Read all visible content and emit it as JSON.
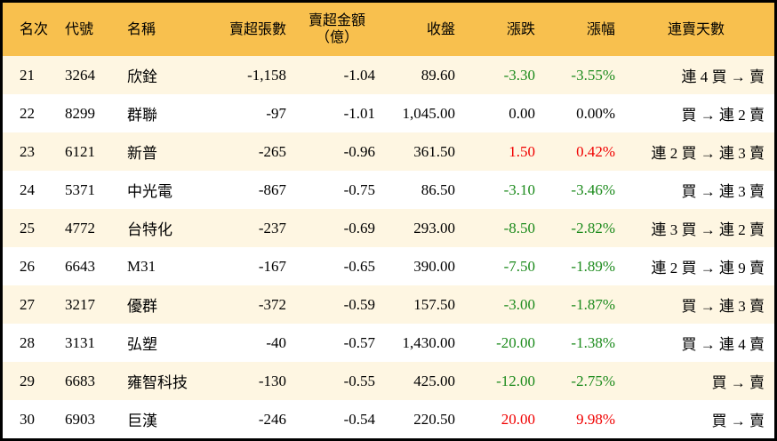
{
  "colors": {
    "header_bg": "#F8C04E",
    "alt_row_bg": "#FEF6E2",
    "down": "#1B8A1B",
    "up": "#F00000"
  },
  "headers": [
    "名次",
    "代號",
    "名稱",
    "賣超張數",
    "賣超金額",
    "（億）",
    "收盤",
    "漲跌",
    "漲幅",
    "連賣天數"
  ],
  "rows": [
    {
      "rank": "21",
      "code": "3264",
      "name": "欣銓",
      "shares": "-1,158",
      "amount": "-1.04",
      "close": "89.60",
      "change": "-3.30",
      "pct": "-3.55%",
      "dir": "down",
      "streak": "連 4 買 → 賣"
    },
    {
      "rank": "22",
      "code": "8299",
      "name": "群聯",
      "shares": "-97",
      "amount": "-1.01",
      "close": "1,045.00",
      "change": "0.00",
      "pct": "0.00%",
      "dir": "flat",
      "streak": "買 → 連 2 賣"
    },
    {
      "rank": "23",
      "code": "6121",
      "name": "新普",
      "shares": "-265",
      "amount": "-0.96",
      "close": "361.50",
      "change": "1.50",
      "pct": "0.42%",
      "dir": "up",
      "streak": "連 2 買 → 連 3 賣"
    },
    {
      "rank": "24",
      "code": "5371",
      "name": "中光電",
      "shares": "-867",
      "amount": "-0.75",
      "close": "86.50",
      "change": "-3.10",
      "pct": "-3.46%",
      "dir": "down",
      "streak": "買 → 連 3 賣"
    },
    {
      "rank": "25",
      "code": "4772",
      "name": "台特化",
      "shares": "-237",
      "amount": "-0.69",
      "close": "293.00",
      "change": "-8.50",
      "pct": "-2.82%",
      "dir": "down",
      "streak": "連 3 買 → 連 2 賣"
    },
    {
      "rank": "26",
      "code": "6643",
      "name": "M31",
      "shares": "-167",
      "amount": "-0.65",
      "close": "390.00",
      "change": "-7.50",
      "pct": "-1.89%",
      "dir": "down",
      "streak": "連 2 買 → 連 9 賣"
    },
    {
      "rank": "27",
      "code": "3217",
      "name": "優群",
      "shares": "-372",
      "amount": "-0.59",
      "close": "157.50",
      "change": "-3.00",
      "pct": "-1.87%",
      "dir": "down",
      "streak": "買 → 連 3 賣"
    },
    {
      "rank": "28",
      "code": "3131",
      "name": "弘塑",
      "shares": "-40",
      "amount": "-0.57",
      "close": "1,430.00",
      "change": "-20.00",
      "pct": "-1.38%",
      "dir": "down",
      "streak": "買 → 連 4 賣"
    },
    {
      "rank": "29",
      "code": "6683",
      "name": "雍智科技",
      "shares": "-130",
      "amount": "-0.55",
      "close": "425.00",
      "change": "-12.00",
      "pct": "-2.75%",
      "dir": "down",
      "streak": "買 → 賣"
    },
    {
      "rank": "30",
      "code": "6903",
      "name": "巨漢",
      "shares": "-246",
      "amount": "-0.54",
      "close": "220.50",
      "change": "20.00",
      "pct": "9.98%",
      "dir": "up",
      "streak": "買 → 賣"
    }
  ]
}
